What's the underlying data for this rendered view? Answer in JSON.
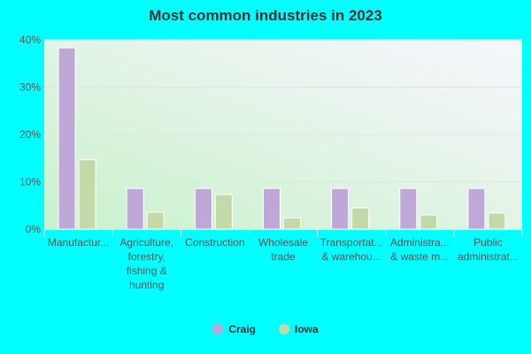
{
  "chart_data": {
    "type": "bar",
    "title": "Most common industries in 2023",
    "categories": [
      [
        "Manufactur..."
      ],
      [
        "Agriculture,",
        "forestry,",
        "fishing &",
        "hunting"
      ],
      [
        "Construction"
      ],
      [
        "Wholesale",
        "trade"
      ],
      [
        "Transportat...",
        "& warehou..."
      ],
      [
        "Administra...",
        "& waste m..."
      ],
      [
        "Public",
        "administrat..."
      ]
    ],
    "series": [
      {
        "name": "Craig",
        "color": "#bfa8d8",
        "values": [
          38.3,
          8.6,
          8.6,
          8.6,
          8.6,
          8.6,
          8.6
        ]
      },
      {
        "name": "Iowa",
        "color": "#c4d9a8",
        "values": [
          14.7,
          3.6,
          7.3,
          2.4,
          4.5,
          3.0,
          3.4
        ]
      }
    ],
    "ylim": [
      0,
      40
    ],
    "yticks": [
      "0%",
      "10%",
      "20%",
      "30%",
      "40%"
    ],
    "grid": true,
    "legend_position": "bottom"
  }
}
